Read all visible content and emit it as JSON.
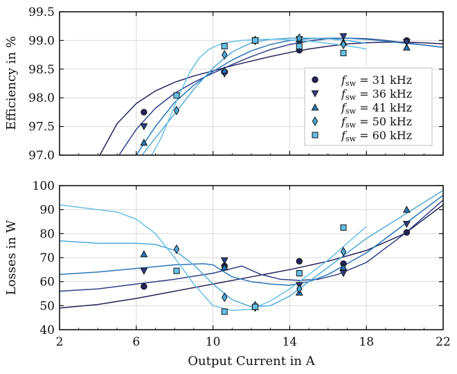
{
  "chart_data": [
    {
      "type": "scatter",
      "ylabel": "Efficiency in %",
      "xlim": [
        2,
        22
      ],
      "ylim": [
        97.0,
        99.5
      ],
      "yticks": [
        "97.0",
        "97.5",
        "98.0",
        "98.5",
        "99.0",
        "99.5"
      ],
      "grid": true,
      "legend": {
        "placement": "center-right",
        "entries": [
          {
            "var": "f",
            "sub": "sw",
            "rest": " = 31 kHz"
          },
          {
            "var": "f",
            "sub": "sw",
            "rest": " = 36 kHz"
          },
          {
            "var": "f",
            "sub": "sw",
            "rest": " = 41 kHz"
          },
          {
            "var": "f",
            "sub": "sw",
            "rest": " = 50 kHz"
          },
          {
            "var": "f",
            "sub": "sw",
            "rest": " = 60 kHz"
          }
        ]
      },
      "series": [
        {
          "name": "fsw = 31 kHz",
          "marker": "circle",
          "color": "#23235c",
          "points": [
            [
              6.4,
              97.75
            ],
            [
              10.6,
              98.45
            ],
            [
              14.5,
              98.83
            ],
            [
              20.1,
              99.0
            ]
          ],
          "fit": [
            [
              4.1,
              97.0
            ],
            [
              5,
              97.55
            ],
            [
              6,
              97.9
            ],
            [
              7,
              98.12
            ],
            [
              8,
              98.27
            ],
            [
              9,
              98.38
            ],
            [
              10,
              98.47
            ],
            [
              11,
              98.56
            ],
            [
              12,
              98.64
            ],
            [
              13,
              98.72
            ],
            [
              14,
              98.79
            ],
            [
              15,
              98.85
            ],
            [
              16,
              98.9
            ],
            [
              17,
              98.94
            ],
            [
              18,
              98.96
            ],
            [
              19,
              98.97
            ],
            [
              20,
              98.97
            ],
            [
              21,
              98.96
            ],
            [
              22,
              98.94
            ]
          ]
        },
        {
          "name": "fsw = 36 kHz",
          "marker": "triangle-down",
          "color": "#2f3f87",
          "points": [
            [
              6.4,
              97.5
            ],
            [
              10.6,
              98.42
            ],
            [
              12.2,
              99.0
            ],
            [
              14.5,
              99.02
            ],
            [
              16.8,
              99.07
            ],
            [
              20.1,
              98.97
            ]
          ],
          "fit": [
            [
              5.1,
              97.0
            ],
            [
              6,
              97.45
            ],
            [
              7,
              97.82
            ],
            [
              8,
              98.08
            ],
            [
              9,
              98.27
            ],
            [
              10,
              98.43
            ],
            [
              11,
              98.58
            ],
            [
              12,
              98.72
            ],
            [
              13,
              98.84
            ],
            [
              14,
              98.93
            ],
            [
              15,
              98.99
            ],
            [
              16,
              99.03
            ],
            [
              17,
              99.04
            ],
            [
              18,
              99.03
            ],
            [
              19,
              99.0
            ],
            [
              20,
              98.96
            ],
            [
              21,
              98.92
            ],
            [
              22,
              98.88
            ]
          ]
        },
        {
          "name": "fsw = 41 kHz",
          "marker": "triangle-up",
          "color": "#2876b8",
          "points": [
            [
              6.4,
              97.22
            ],
            [
              10.6,
              98.48
            ],
            [
              12.2,
              99.0
            ],
            [
              14.5,
              99.02
            ],
            [
              16.8,
              98.97
            ],
            [
              20.1,
              98.88
            ]
          ],
          "fit": [
            [
              6.0,
              97.0
            ],
            [
              7,
              97.5
            ],
            [
              8,
              97.92
            ],
            [
              9,
              98.22
            ],
            [
              10,
              98.46
            ],
            [
              11,
              98.66
            ],
            [
              12,
              98.82
            ],
            [
              13,
              98.93
            ],
            [
              14,
              99.0
            ],
            [
              15,
              99.03
            ],
            [
              16,
              99.04
            ],
            [
              17,
              99.04
            ],
            [
              18,
              99.02
            ],
            [
              19,
              98.99
            ],
            [
              20,
              98.95
            ],
            [
              21,
              98.92
            ],
            [
              22,
              98.88
            ]
          ]
        },
        {
          "name": "fsw = 50 kHz",
          "marker": "diamond",
          "color": "#4fa8d8",
          "points": [
            [
              8.1,
              97.78
            ],
            [
              10.6,
              98.75
            ],
            [
              12.2,
              99.0
            ],
            [
              14.5,
              99.04
            ],
            [
              16.8,
              98.93
            ]
          ],
          "fit": [
            [
              6.3,
              97.0
            ],
            [
              7,
              97.3
            ],
            [
              8,
              97.72
            ],
            [
              9,
              98.15
            ],
            [
              10,
              98.52
            ],
            [
              11,
              98.8
            ],
            [
              12,
              98.96
            ],
            [
              13,
              99.02
            ],
            [
              14,
              99.04
            ],
            [
              15,
              99.04
            ],
            [
              16,
              99.03
            ],
            [
              17,
              99.0
            ],
            [
              18,
              98.95
            ]
          ]
        },
        {
          "name": "fsw = 60 kHz",
          "marker": "square",
          "color": "#67c0e8",
          "points": [
            [
              8.1,
              98.04
            ],
            [
              10.6,
              98.9
            ],
            [
              12.2,
              99.0
            ],
            [
              14.5,
              98.9
            ],
            [
              16.8,
              98.78
            ]
          ],
          "fit": [
            [
              6.8,
              97.0
            ],
            [
              7.3,
              97.3
            ],
            [
              7.8,
              97.7
            ],
            [
              8.3,
              98.1
            ],
            [
              8.8,
              98.45
            ],
            [
              9.3,
              98.7
            ],
            [
              9.8,
              98.85
            ],
            [
              10.5,
              98.95
            ],
            [
              11.5,
              99.0
            ],
            [
              12.5,
              99.02
            ],
            [
              13.5,
              99.02
            ],
            [
              14.5,
              99.0
            ],
            [
              15.5,
              98.97
            ],
            [
              16.5,
              98.93
            ],
            [
              17.5,
              98.88
            ],
            [
              18,
              98.85
            ]
          ]
        }
      ]
    },
    {
      "type": "scatter",
      "ylabel": "Losses in W",
      "xlabel": "Output Current in A",
      "xlim": [
        2,
        22
      ],
      "ylim": [
        40,
        100
      ],
      "xticks": [
        "2",
        "6",
        "10",
        "14",
        "18",
        "22"
      ],
      "yticks": [
        "40",
        "50",
        "60",
        "70",
        "80",
        "90",
        "100"
      ],
      "grid": true,
      "series": [
        {
          "name": "fsw = 31 kHz",
          "marker": "circle",
          "color": "#23235c",
          "points": [
            [
              6.4,
              58
            ],
            [
              10.6,
              66.5
            ],
            [
              14.5,
              68.5
            ],
            [
              16.8,
              67.5
            ],
            [
              20.1,
              80.5
            ]
          ],
          "fit": [
            [
              2,
              49
            ],
            [
              4,
              50.5
            ],
            [
              6,
              53
            ],
            [
              8,
              56
            ],
            [
              10,
              59
            ],
            [
              12,
              62
            ],
            [
              14,
              65
            ],
            [
              16,
              68.5
            ],
            [
              18,
              73
            ],
            [
              20,
              80
            ],
            [
              22,
              92
            ]
          ]
        },
        {
          "name": "fsw = 36 kHz",
          "marker": "triangle-down",
          "color": "#2f3f87",
          "points": [
            [
              6.4,
              64.5
            ],
            [
              10.6,
              68.8
            ],
            [
              12.2,
              49
            ],
            [
              14.5,
              58.5
            ],
            [
              16.8,
              63.5
            ],
            [
              20.1,
              84
            ]
          ],
          "fit": [
            [
              2,
              56
            ],
            [
              4,
              57
            ],
            [
              6,
              59
            ],
            [
              8,
              61
            ],
            [
              10,
              63.5
            ],
            [
              11.5,
              66.5
            ],
            [
              12.5,
              63
            ],
            [
              13.5,
              61
            ],
            [
              14.5,
              60.5
            ],
            [
              15.5,
              61
            ],
            [
              16.5,
              63
            ],
            [
              18,
              68
            ],
            [
              20,
              80
            ],
            [
              22,
              94
            ]
          ]
        },
        {
          "name": "fsw = 41 kHz",
          "marker": "triangle-up",
          "color": "#2876b8",
          "points": [
            [
              6.4,
              71.5
            ],
            [
              10.6,
              66
            ],
            [
              12.2,
              49.5
            ],
            [
              14.5,
              55.5
            ],
            [
              16.8,
              66
            ],
            [
              20.1,
              90
            ]
          ],
          "fit": [
            [
              2,
              63
            ],
            [
              4,
              64
            ],
            [
              6,
              65.5
            ],
            [
              8,
              67
            ],
            [
              9.5,
              67.5
            ],
            [
              10,
              67
            ],
            [
              11,
              62
            ],
            [
              12,
              60
            ],
            [
              13,
              59
            ],
            [
              14,
              58.5
            ],
            [
              15,
              60
            ],
            [
              16,
              63
            ],
            [
              18,
              72
            ],
            [
              20,
              84
            ],
            [
              22,
              96
            ]
          ]
        },
        {
          "name": "fsw = 50 kHz",
          "marker": "diamond",
          "color": "#4fa8d8",
          "points": [
            [
              8.1,
              73.5
            ],
            [
              10.6,
              53.5
            ],
            [
              12.2,
              50
            ],
            [
              14.5,
              57
            ],
            [
              16.8,
              72.5
            ]
          ],
          "fit": [
            [
              2,
              77
            ],
            [
              4,
              76
            ],
            [
              6,
              76
            ],
            [
              7,
              75.5
            ],
            [
              8,
              73
            ],
            [
              9,
              67
            ],
            [
              10,
              59
            ],
            [
              11,
              52.5
            ],
            [
              12,
              49.5
            ],
            [
              13,
              50
            ],
            [
              14,
              54
            ],
            [
              15,
              60
            ],
            [
              16,
              66
            ],
            [
              18,
              78
            ],
            [
              20,
              88
            ],
            [
              22,
              98
            ]
          ]
        },
        {
          "name": "fsw = 60 kHz",
          "marker": "square",
          "color": "#67c0e8",
          "points": [
            [
              8.1,
              64.5
            ],
            [
              10.6,
              47.5
            ],
            [
              12.2,
              49.5
            ],
            [
              14.5,
              63.5
            ],
            [
              16.8,
              82.5
            ]
          ],
          "fit": [
            [
              2,
              92
            ],
            [
              3,
              91
            ],
            [
              4,
              90
            ],
            [
              5,
              89
            ],
            [
              6,
              86
            ],
            [
              7,
              80
            ],
            [
              8,
              70
            ],
            [
              9,
              59
            ],
            [
              10,
              50
            ],
            [
              11,
              48
            ],
            [
              12,
              48.5
            ],
            [
              13,
              52
            ],
            [
              14,
              57
            ],
            [
              15,
              63
            ],
            [
              16,
              69
            ],
            [
              17,
              76
            ],
            [
              18,
              83
            ]
          ]
        }
      ]
    }
  ]
}
